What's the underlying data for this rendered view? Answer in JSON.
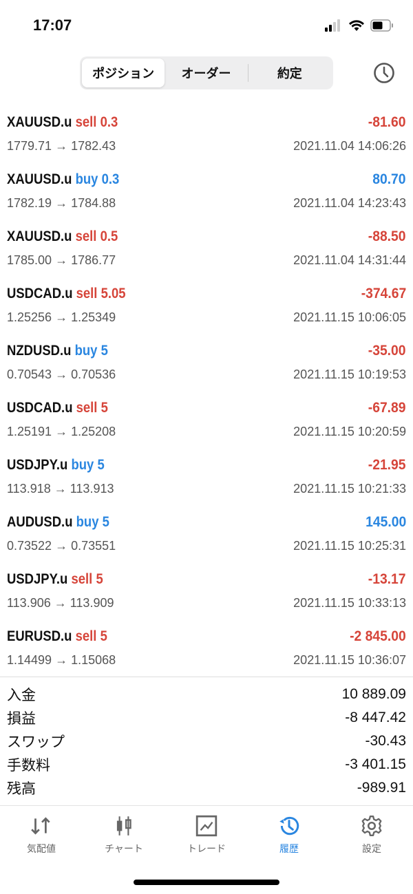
{
  "status": {
    "time": "17:07"
  },
  "segments": [
    "ポジション",
    "オーダー",
    "約定"
  ],
  "active_segment": 0,
  "colors": {
    "loss": "#d6453a",
    "profit": "#2a86e0",
    "accent": "#2a86e0"
  },
  "deals": [
    {
      "symbol": "XAUUSD.u",
      "side": "sell",
      "volume": "0.3",
      "open": "1779.71",
      "close": "1782.43",
      "time": "2021.11.04 14:06:26",
      "profit": "-81.60"
    },
    {
      "symbol": "XAUUSD.u",
      "side": "buy",
      "volume": "0.3",
      "open": "1782.19",
      "close": "1784.88",
      "time": "2021.11.04 14:23:43",
      "profit": "80.70"
    },
    {
      "symbol": "XAUUSD.u",
      "side": "sell",
      "volume": "0.5",
      "open": "1785.00",
      "close": "1786.77",
      "time": "2021.11.04 14:31:44",
      "profit": "-88.50"
    },
    {
      "symbol": "USDCAD.u",
      "side": "sell",
      "volume": "5.05",
      "open": "1.25256",
      "close": "1.25349",
      "time": "2021.11.15 10:06:05",
      "profit": "-374.67"
    },
    {
      "symbol": "NZDUSD.u",
      "side": "buy",
      "volume": "5",
      "open": "0.70543",
      "close": "0.70536",
      "time": "2021.11.15 10:19:53",
      "profit": "-35.00"
    },
    {
      "symbol": "USDCAD.u",
      "side": "sell",
      "volume": "5",
      "open": "1.25191",
      "close": "1.25208",
      "time": "2021.11.15 10:20:59",
      "profit": "-67.89"
    },
    {
      "symbol": "USDJPY.u",
      "side": "buy",
      "volume": "5",
      "open": "113.918",
      "close": "113.913",
      "time": "2021.11.15 10:21:33",
      "profit": "-21.95"
    },
    {
      "symbol": "AUDUSD.u",
      "side": "buy",
      "volume": "5",
      "open": "0.73522",
      "close": "0.73551",
      "time": "2021.11.15 10:25:31",
      "profit": "145.00"
    },
    {
      "symbol": "USDJPY.u",
      "side": "sell",
      "volume": "5",
      "open": "113.906",
      "close": "113.909",
      "time": "2021.11.15 10:33:13",
      "profit": "-13.17"
    },
    {
      "symbol": "EURUSD.u",
      "side": "sell",
      "volume": "5",
      "open": "1.14499",
      "close": "1.15068",
      "time": "2021.11.15 10:36:07",
      "profit": "-2 845.00"
    }
  ],
  "summary": [
    {
      "label": "入金",
      "value": "10 889.09"
    },
    {
      "label": "損益",
      "value": "-8 447.42"
    },
    {
      "label": "スワップ",
      "value": "-30.43"
    },
    {
      "label": "手数料",
      "value": "-3 401.15"
    },
    {
      "label": "残高",
      "value": "-989.91"
    }
  ],
  "tabs": [
    {
      "label": "気配値",
      "icon": "quotes-arrows-icon"
    },
    {
      "label": "チャート",
      "icon": "candlestick-icon"
    },
    {
      "label": "トレード",
      "icon": "trade-chart-icon"
    },
    {
      "label": "履歴",
      "icon": "history-icon"
    },
    {
      "label": "設定",
      "icon": "gear-icon"
    }
  ],
  "active_tab": 3
}
